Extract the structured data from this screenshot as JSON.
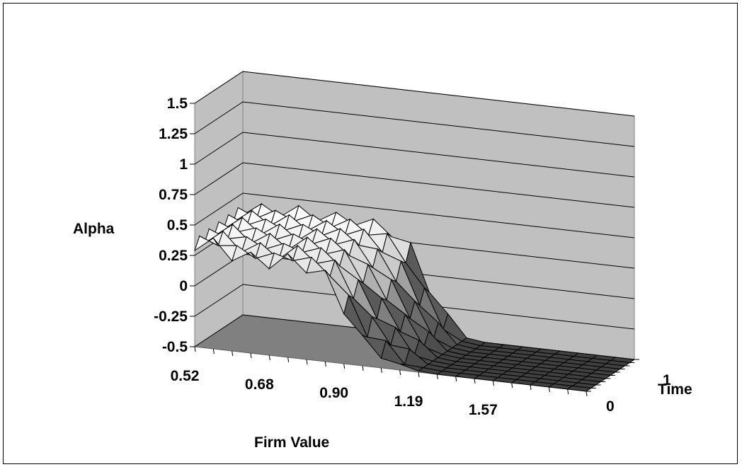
{
  "chart_data": {
    "type": "surface",
    "title": "",
    "ylabel": "Alpha",
    "xlabel": "Firm Value",
    "zlabel": "Time",
    "zlim": [
      -0.5,
      1.5
    ],
    "z_ticks": [
      "1.5",
      "1.25",
      "1",
      "0.75",
      "0.5",
      "0.25",
      "0",
      "-0.25",
      "-0.5"
    ],
    "x_tick_labels": [
      "0.52",
      "0.68",
      "0.90",
      "1.19",
      "1.57"
    ],
    "time_tick_labels": [
      "0",
      "1"
    ],
    "grid": true,
    "firm_value": [
      0.52,
      0.56,
      0.6,
      0.64,
      0.68,
      0.73,
      0.78,
      0.84,
      0.9,
      0.97,
      1.03,
      1.11,
      1.19,
      1.27,
      1.37,
      1.46,
      1.57,
      1.68,
      1.8,
      1.93,
      2.07,
      2.22
    ],
    "time": [
      0,
      0.1,
      0.2,
      0.3,
      0.4,
      0.5,
      0.6,
      0.7,
      0.8,
      0.9,
      1.0
    ],
    "alpha_profile": {
      "description_values_by_firm_value_index": "alpha at time 0 (front) and time 1 (back); surface interpolates between them",
      "front": [
        0.33,
        0.36,
        0.28,
        0.28,
        0.25,
        0.3,
        0.25,
        0.2,
        -0.05,
        -0.3,
        -0.38,
        -0.45,
        -0.49,
        -0.5,
        -0.5,
        -0.5,
        -0.5,
        -0.5,
        -0.5,
        -0.5,
        -0.5,
        -0.5
      ],
      "back": [
        0.36,
        0.38,
        0.38,
        0.4,
        0.38,
        0.38,
        0.38,
        0.36,
        0.32,
        0.2,
        -0.1,
        -0.35,
        -0.48,
        -0.5,
        -0.5,
        -0.5,
        -0.5,
        -0.5,
        -0.5,
        -0.5,
        -0.5,
        -0.5
      ]
    },
    "colors": {
      "walls": "#c0c0c0",
      "floor": "#808080",
      "surface_high": "#ffffff",
      "surface_low": "#404040",
      "grid": "#000000"
    }
  }
}
